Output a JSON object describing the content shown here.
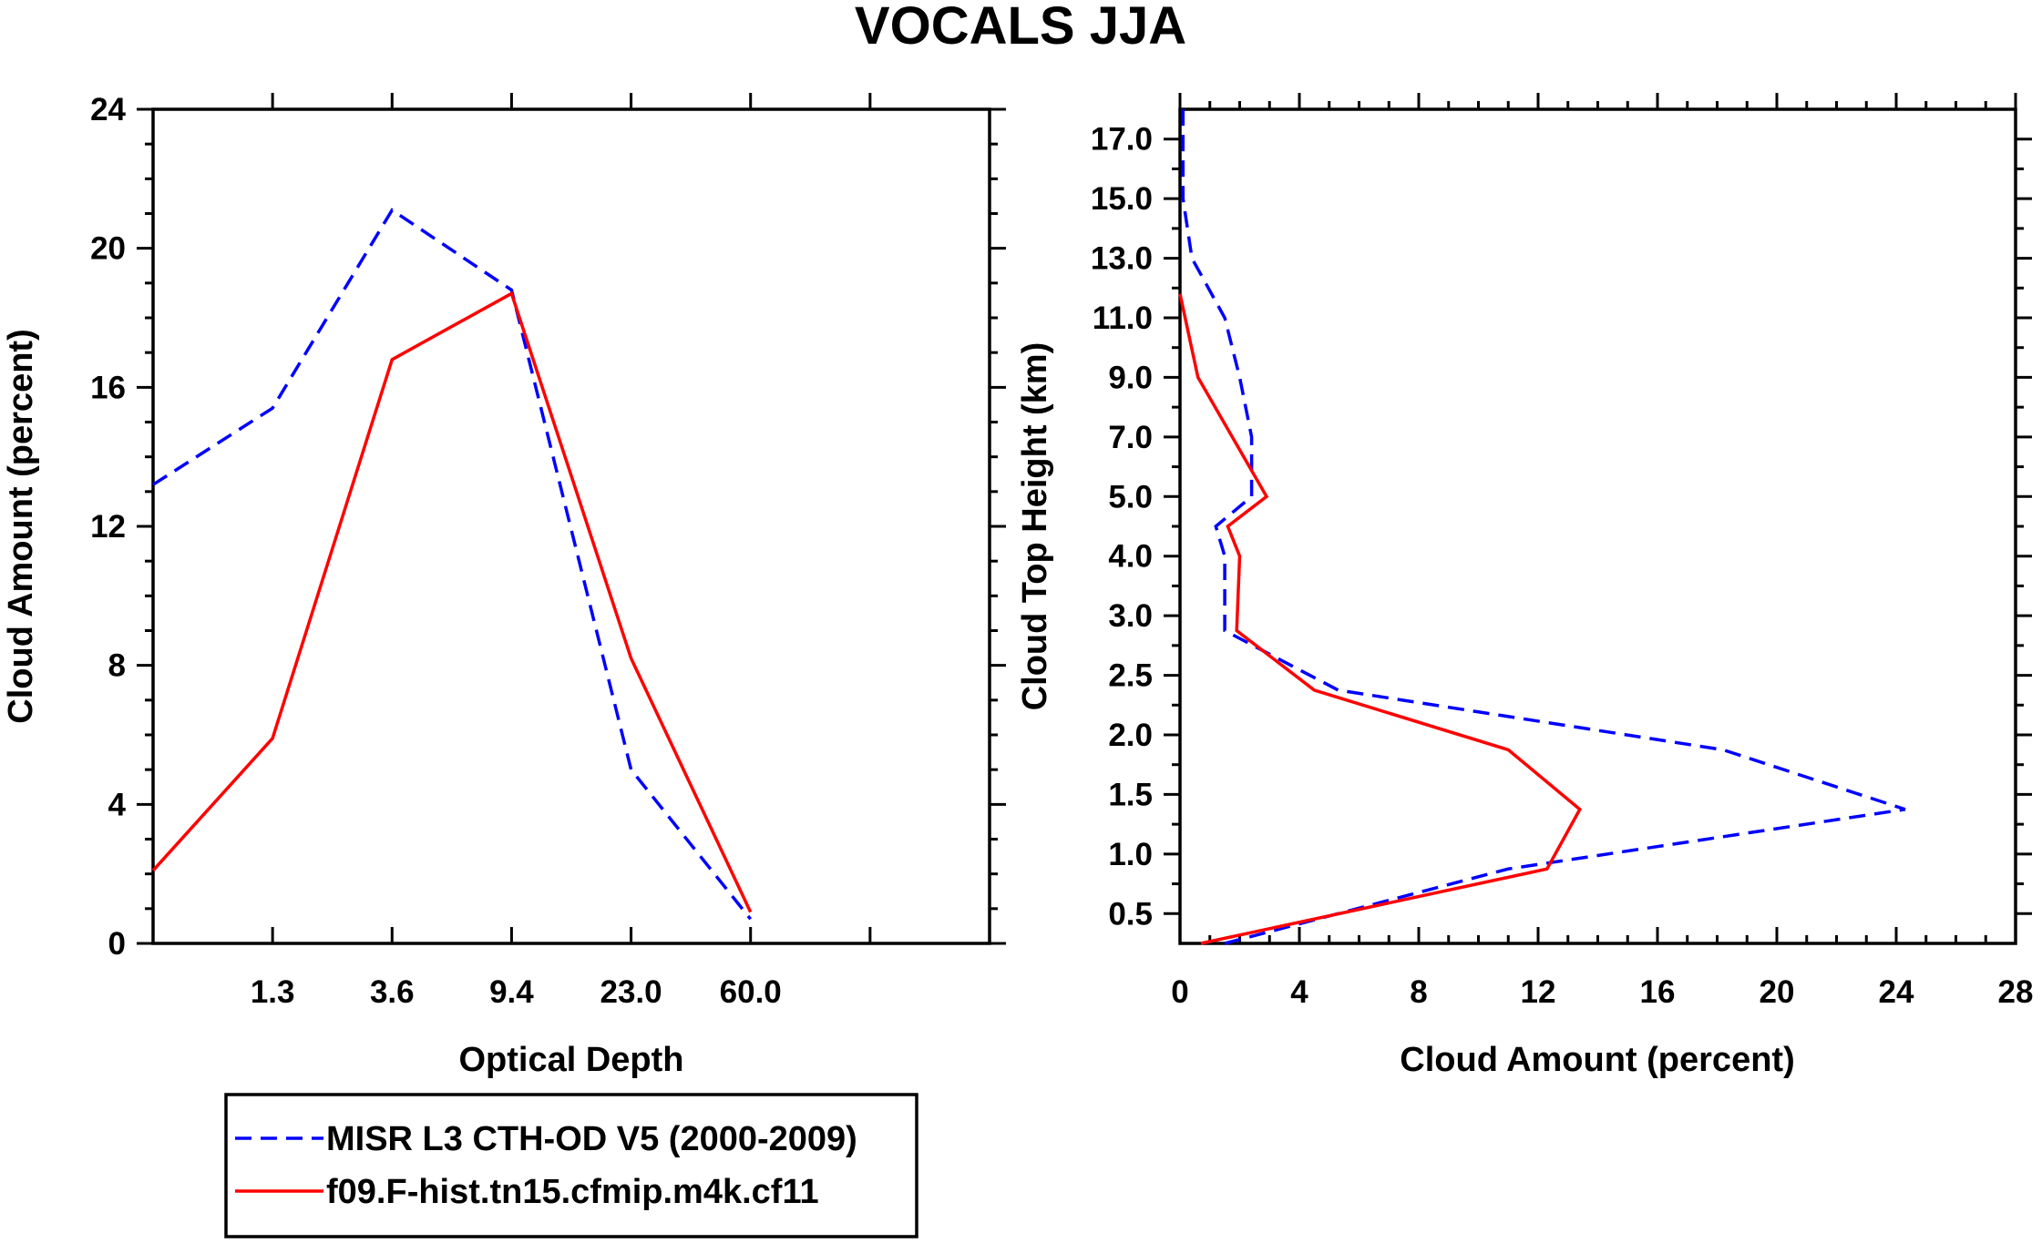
{
  "title": "VOCALS JJA",
  "legend": [
    {
      "label": "MISR L3 CTH-OD V5 (2000-2009)",
      "color": "#0000ff",
      "dash": "dashed"
    },
    {
      "label": "f09.F-hist.tn15.cfmip.m4k.cf11",
      "color": "#ff0000",
      "dash": "solid"
    }
  ],
  "chart_data": [
    {
      "type": "line",
      "xlabel": "Optical Depth",
      "ylabel": "Cloud Amount (percent)",
      "x_bins": 7,
      "x_ticklabels": [
        "1.3",
        "3.6",
        "9.4",
        "23.0",
        "60.0"
      ],
      "ylim": [
        0,
        24
      ],
      "y_ticks": [
        "0",
        "4",
        "8",
        "12",
        "16",
        "20",
        "24"
      ],
      "series": [
        {
          "name": "MISR L3 CTH-OD V5 (2000-2009)",
          "color": "#0000ff",
          "style": "dashed",
          "values": [
            13.2,
            15.4,
            21.1,
            18.8,
            5.0,
            0.7
          ]
        },
        {
          "name": "f09.F-hist.tn15.cfmip.m4k.cf11",
          "color": "#ff0000",
          "style": "solid",
          "values": [
            2.1,
            5.9,
            16.8,
            18.7,
            8.2,
            0.9
          ]
        }
      ]
    },
    {
      "type": "line",
      "orientation": "vertical-profile",
      "xlabel": "Cloud Amount (percent)",
      "ylabel": "Cloud Top Height (km)",
      "xlim": [
        0,
        28
      ],
      "x_ticks": [
        "0",
        "4",
        "8",
        "12",
        "16",
        "20",
        "24",
        "28"
      ],
      "y_ticklabels": [
        "0.5",
        "1.0",
        "1.5",
        "2.0",
        "2.5",
        "3.0",
        "4.0",
        "5.0",
        "7.0",
        "9.0",
        "11.0",
        "13.0",
        "15.0",
        "17.0"
      ],
      "y_levels": 14,
      "series": [
        {
          "name": "MISR L3 CTH-OD V5 (2000-2009)",
          "color": "#0000ff",
          "style": "dashed",
          "points": [
            [
              1.5,
              0.0
            ],
            [
              11.0,
              1.25
            ],
            [
              24.3,
              2.25
            ],
            [
              18.2,
              3.25
            ],
            [
              5.3,
              4.25
            ],
            [
              1.5,
              5.25
            ],
            [
              1.5,
              6.5
            ],
            [
              1.2,
              7.0
            ],
            [
              2.4,
              7.5
            ],
            [
              2.4,
              8.5
            ],
            [
              2.0,
              9.5
            ],
            [
              1.5,
              10.5
            ],
            [
              0.4,
              11.5
            ],
            [
              0.1,
              12.5
            ],
            [
              0.1,
              13.5
            ],
            [
              0.1,
              14.0
            ]
          ]
        },
        {
          "name": "f09.F-hist.tn15.cfmip.m4k.cf11",
          "color": "#ff0000",
          "style": "solid",
          "points": [
            [
              0.7,
              0.0
            ],
            [
              12.3,
              1.25
            ],
            [
              13.4,
              2.25
            ],
            [
              11.0,
              3.25
            ],
            [
              4.5,
              4.25
            ],
            [
              1.9,
              5.25
            ],
            [
              2.0,
              6.5
            ],
            [
              1.6,
              7.0
            ],
            [
              2.9,
              7.5
            ],
            [
              0.6,
              9.5
            ],
            [
              0.0,
              10.9
            ]
          ]
        }
      ]
    }
  ]
}
